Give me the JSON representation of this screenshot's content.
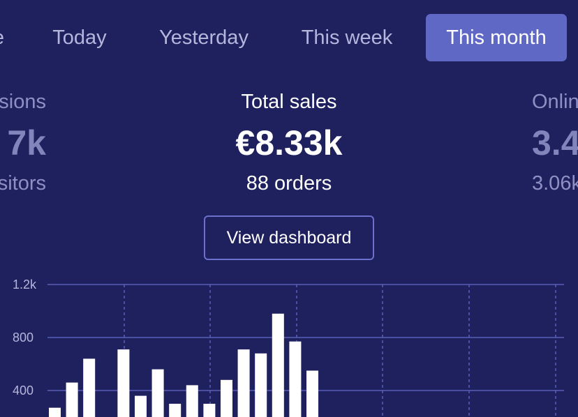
{
  "tabs": [
    {
      "label": "e",
      "active": false
    },
    {
      "label": "Today",
      "active": false
    },
    {
      "label": "Yesterday",
      "active": false
    },
    {
      "label": "This week",
      "active": false
    },
    {
      "label": "This month",
      "active": true
    }
  ],
  "stats": {
    "left": {
      "label": "sions",
      "value": "7k",
      "sub": "sitors"
    },
    "center": {
      "label": "Total sales",
      "value": "€8.33k",
      "sub": "88 orders"
    },
    "right": {
      "label": "Onlin",
      "value": "3.4",
      "sub": "3.06k"
    }
  },
  "view_dashboard_label": "View dashboard",
  "colors": {
    "background": "#1f205e",
    "accent": "#6068c6",
    "gridline": "#5a5fb8",
    "bar": "#ffffff"
  },
  "chart_data": {
    "type": "bar",
    "y_ticks": [
      "1.2k",
      "800",
      "400"
    ],
    "y_tick_values": [
      1200,
      800,
      400
    ],
    "ylim": [
      0,
      1200
    ],
    "values": [
      270,
      460,
      640,
      null,
      710,
      360,
      560,
      300,
      440,
      300,
      480,
      710,
      680,
      980,
      770,
      550
    ],
    "grid": true
  }
}
